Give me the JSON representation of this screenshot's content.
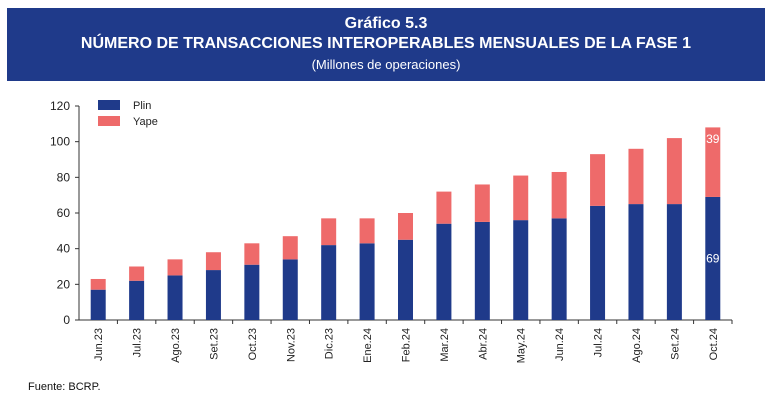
{
  "header": {
    "title_line1": "Gráfico 5.3",
    "title_line2": "NÚMERO DE TRANSACCIONES INTEROPERABLES MENSUALES DE LA FASE 1",
    "subtitle": "(Millones de operaciones)"
  },
  "source": "Fuente: BCRP.",
  "colors": {
    "header_bg": "#1f3a8a",
    "plin": "#1f3a8a",
    "yape": "#ee6a6a"
  },
  "chart_data": {
    "type": "bar",
    "stacked": true,
    "categories": [
      "Jun.23",
      "Jul.23",
      "Ago.23",
      "Set.23",
      "Oct.23",
      "Nov.23",
      "Dic.23",
      "Ene.24",
      "Feb.24",
      "Mar.24",
      "Abr.24",
      "May.24",
      "Jun.24",
      "Jul.24",
      "Ago.24",
      "Set.24",
      "Oct.24"
    ],
    "series": [
      {
        "name": "Plin",
        "color": "#1f3a8a",
        "values": [
          17,
          22,
          25,
          28,
          31,
          34,
          42,
          43,
          45,
          54,
          55,
          56,
          57,
          64,
          65,
          65,
          69
        ]
      },
      {
        "name": "Yape",
        "color": "#ee6a6a",
        "values": [
          6,
          8,
          9,
          10,
          12,
          13,
          15,
          14,
          15,
          18,
          21,
          25,
          26,
          29,
          31,
          37,
          39
        ]
      }
    ],
    "data_labels": [
      {
        "category": "Oct.24",
        "series": "Plin",
        "text": "69"
      },
      {
        "category": "Oct.24",
        "series": "Yape",
        "text": "39"
      }
    ],
    "ylim": [
      0,
      120
    ],
    "yticks": [
      0,
      20,
      40,
      60,
      80,
      100,
      120
    ],
    "legend_position": "top-left",
    "grid": false
  }
}
